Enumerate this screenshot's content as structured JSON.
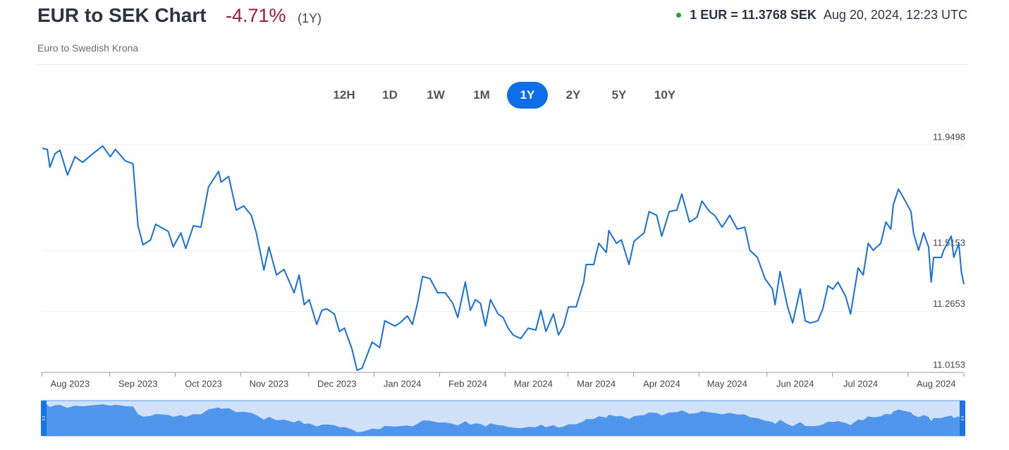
{
  "header": {
    "title": "EUR to SEK Chart",
    "change": "-4.71%",
    "period": "(1Y)",
    "subtitle": "Euro to Swedish Krona",
    "rate": "1 EUR = 11.3768 SEK",
    "timestamp": "Aug 20, 2024, 12:23 UTC"
  },
  "ranges": {
    "options": [
      "12H",
      "1D",
      "1W",
      "1M",
      "1Y",
      "2Y",
      "5Y",
      "10Y"
    ],
    "active": 4
  },
  "chart_data": {
    "type": "line",
    "color": "#1670d8",
    "grid": true,
    "x": [
      0,
      2,
      3,
      5,
      7,
      10,
      13,
      16,
      20,
      24,
      27,
      29,
      33,
      36,
      38,
      40,
      43,
      45,
      50,
      52,
      55,
      57,
      60,
      63,
      66,
      70,
      71,
      74,
      77,
      80,
      83,
      85,
      88,
      90,
      93,
      96,
      100,
      102,
      104,
      106,
      109,
      111,
      113,
      116,
      118,
      120,
      123,
      125,
      127,
      131,
      134,
      136,
      140,
      142,
      145,
      147,
      149,
      151,
      154,
      157,
      160,
      163,
      165,
      168,
      170,
      172,
      174,
      176,
      178,
      181,
      183,
      185,
      187,
      190,
      193,
      196,
      198,
      200,
      203,
      205,
      207,
      209,
      212,
      215,
      216,
      219,
      221,
      224,
      225,
      228,
      230,
      233,
      235,
      239,
      241,
      244,
      246,
      249,
      252,
      254,
      257,
      260,
      262,
      265,
      267,
      270,
      273,
      276,
      279,
      281,
      284,
      287,
      290,
      291,
      293,
      296,
      298,
      301,
      303,
      305,
      308,
      310,
      312,
      314,
      316,
      319,
      321,
      324,
      326,
      328,
      330,
      333,
      335,
      337,
      338,
      340,
      342,
      345,
      346,
      348,
      350,
      352,
      353,
      354,
      357,
      358,
      361,
      362,
      364,
      365,
      366
    ],
    "values": [
      11.935,
      11.93,
      11.857,
      11.912,
      11.927,
      11.825,
      11.9,
      11.877,
      11.912,
      11.944,
      11.9,
      11.93,
      11.883,
      11.871,
      11.617,
      11.539,
      11.559,
      11.623,
      11.594,
      11.53,
      11.588,
      11.524,
      11.617,
      11.611,
      11.776,
      11.84,
      11.796,
      11.819,
      11.681,
      11.698,
      11.66,
      11.588,
      11.435,
      11.53,
      11.415,
      11.438,
      11.342,
      11.415,
      11.293,
      11.314,
      11.212,
      11.27,
      11.276,
      11.255,
      11.183,
      11.197,
      11.111,
      11.024,
      11.033,
      11.14,
      11.117,
      11.227,
      11.206,
      11.218,
      11.247,
      11.212,
      11.299,
      11.409,
      11.4,
      11.342,
      11.342,
      11.299,
      11.241,
      11.386,
      11.27,
      11.314,
      11.299,
      11.206,
      11.314,
      11.255,
      11.241,
      11.197,
      11.169,
      11.154,
      11.197,
      11.189,
      11.27,
      11.183,
      11.255,
      11.169,
      11.206,
      11.284,
      11.284,
      11.386,
      11.458,
      11.458,
      11.545,
      11.507,
      11.597,
      11.545,
      11.559,
      11.458,
      11.553,
      11.588,
      11.675,
      11.66,
      11.574,
      11.675,
      11.681,
      11.747,
      11.632,
      11.652,
      11.718,
      11.675,
      11.66,
      11.611,
      11.66,
      11.603,
      11.611,
      11.516,
      11.487,
      11.4,
      11.357,
      11.293,
      11.429,
      11.284,
      11.218,
      11.357,
      11.227,
      11.218,
      11.227,
      11.276,
      11.371,
      11.357,
      11.386,
      11.328,
      11.255,
      11.444,
      11.415,
      11.545,
      11.516,
      11.545,
      11.632,
      11.603,
      11.704,
      11.767,
      11.732,
      11.675,
      11.588,
      11.516,
      11.588,
      11.53,
      11.386,
      11.487,
      11.487,
      11.516,
      11.574,
      11.487,
      11.545,
      11.429,
      11.3768
    ],
    "xlim": [
      0,
      366
    ],
    "xticks": [
      {
        "value": 11,
        "label": "Aug 2023"
      },
      {
        "value": 38,
        "label": "Sep 2023"
      },
      {
        "value": 64,
        "label": "Oct 2023"
      },
      {
        "value": 90,
        "label": "Nov 2023"
      },
      {
        "value": 117,
        "label": "Dec 2023"
      },
      {
        "value": 143,
        "label": "Jan 2024"
      },
      {
        "value": 169,
        "label": "Feb 2024"
      },
      {
        "value": 195,
        "label": "Mar 2024"
      },
      {
        "value": 220,
        "label": "Mar 2024"
      },
      {
        "value": 246,
        "label": "Apr 2024"
      },
      {
        "value": 272,
        "label": "May 2024"
      },
      {
        "value": 299,
        "label": "Jun 2024"
      },
      {
        "value": 325,
        "label": "Jul 2024"
      },
      {
        "value": 355,
        "label": "Aug 2024"
      }
    ],
    "ylim": [
      11.0153,
      11.9498
    ],
    "yticks": [
      11.0153,
      11.2653,
      11.5153,
      11.9498
    ]
  }
}
